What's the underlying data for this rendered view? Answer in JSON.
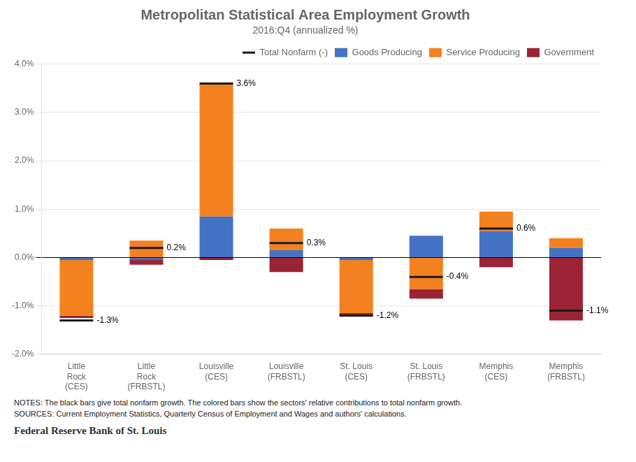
{
  "chart_data": {
    "type": "bar",
    "title": "Metropolitan Statistical Area Employment Growth",
    "subtitle": "2016:Q4 (annualized %)",
    "categories": [
      "Little\nRock\n(CES)",
      "Little\nRock\n(FRBSTL)",
      "Louisville\n(CES)",
      "Louisville\n(FRBSTL)",
      "St. Louis\n(CES)",
      "St. Louis\n(FRBSTL)",
      "Memphis\n(CES)",
      "Memphis\n(FRBSTL)"
    ],
    "series": [
      {
        "name": "Goods Producing",
        "color": "#4472C4",
        "values": [
          -0.05,
          -0.05,
          0.85,
          0.15,
          -0.05,
          0.45,
          0.55,
          0.2
        ]
      },
      {
        "name": "Service Producing",
        "color": "#F4811F",
        "values": [
          -1.15,
          0.35,
          2.75,
          0.45,
          -1.1,
          -0.65,
          0.4,
          0.2
        ]
      },
      {
        "name": "Government",
        "color": "#9B2335",
        "values": [
          -0.05,
          -0.1,
          -0.05,
          -0.3,
          -0.05,
          -0.2,
          -0.2,
          -1.3
        ]
      },
      {
        "name": "Total Nonfarm (-)",
        "type": "line",
        "marker": "dash",
        "line_style": "none",
        "color": "#1A1A1A",
        "values": [
          -1.3,
          0.2,
          3.6,
          0.3,
          -1.2,
          -0.4,
          0.6,
          -1.1
        ],
        "value_labels": [
          "-1.3%",
          "0.2%",
          "3.6%",
          "0.3%",
          "-1.2%",
          "-0.4%",
          "0.6%",
          "-1.1%"
        ],
        "data_labels": true
      }
    ],
    "stacked": true,
    "ylim": [
      -2.0,
      4.0
    ],
    "yticks": [
      {
        "value": -2.0,
        "label": "-2.0%"
      },
      {
        "value": -1.0,
        "label": "-1.0%"
      },
      {
        "value": 0.0,
        "label": "0.0%"
      },
      {
        "value": 1.0,
        "label": "1.0%"
      },
      {
        "value": 2.0,
        "label": "2.0%"
      },
      {
        "value": 3.0,
        "label": "3.0%"
      },
      {
        "value": 4.0,
        "label": "4.0%"
      }
    ],
    "grid": true,
    "legend": "upper right",
    "notes": [
      "NOTES:  The black bars give total nonfarm growth. The colored bars show the sectors' relative contributions to total nonfarm growth.",
      "SOURCES:  Current Employment Statistics, Quarterly Census of Employment and Wages and authors' calculations."
    ],
    "footer": "Federal Reserve Bank of St. Louis"
  }
}
